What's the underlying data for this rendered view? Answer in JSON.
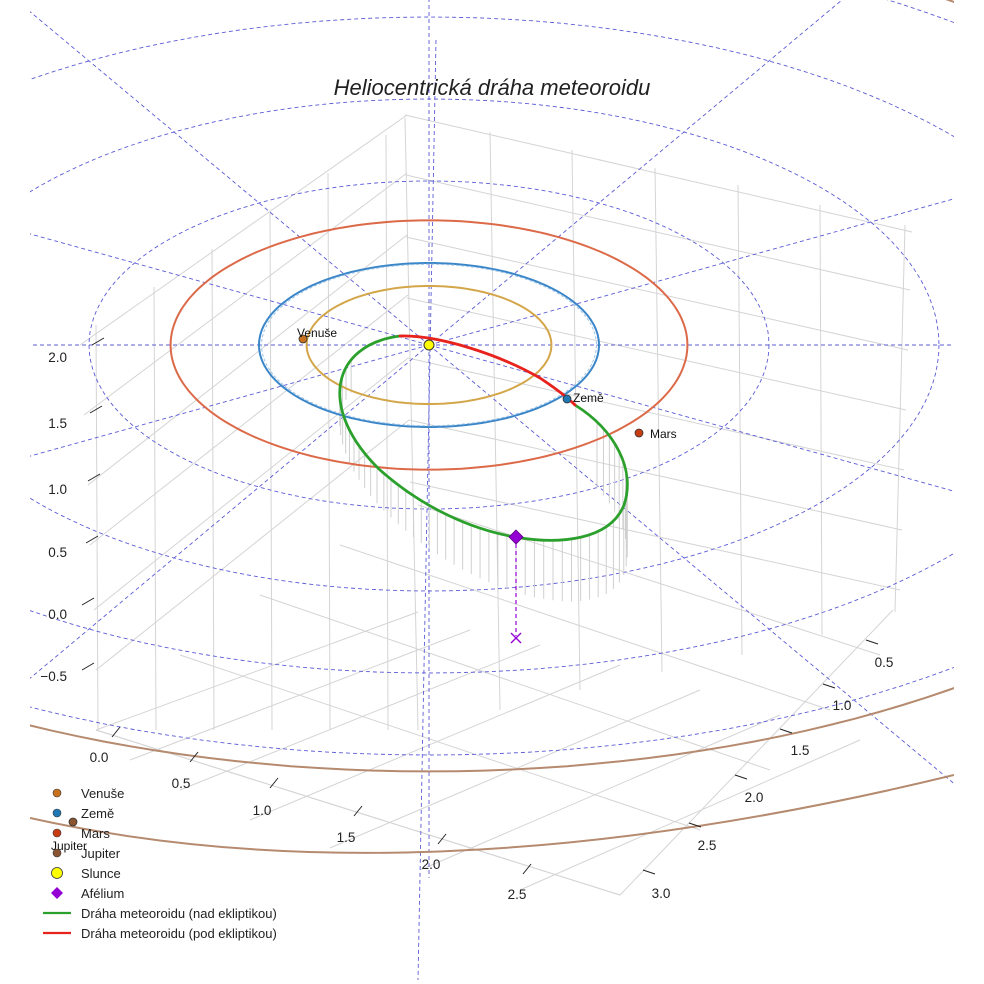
{
  "chart_data": {
    "type": "line",
    "title": "Heliocentrická dráha meteoroidu",
    "axes": {
      "x": {
        "range": [
          0,
          3.2
        ],
        "ticks": [
          "0.0",
          "0.5",
          "1.0",
          "1.5",
          "2.0",
          "2.5"
        ]
      },
      "y": {
        "range": [
          0.3,
          3.1
        ],
        "ticks": [
          "0.5",
          "1.0",
          "1.5",
          "2.0",
          "2.5",
          "3.0"
        ]
      },
      "z": {
        "range": [
          -0.8,
          2.2
        ],
        "ticks": [
          "−0.5",
          "0.0",
          "0.5",
          "1.0",
          "1.5",
          "2.0"
        ]
      },
      "grid": true
    },
    "planets": [
      {
        "name": "Venuše",
        "label": "Venuše",
        "orbit_radius_au": 0.72,
        "color": "#d4a64a",
        "marker": "#c7711e"
      },
      {
        "name": "Země",
        "label": "Země",
        "orbit_radius_au": 1.0,
        "color": "#3a86c8",
        "marker": "#1f77b4"
      },
      {
        "name": "Mars",
        "label": "Mars",
        "orbit_radius_au": 1.52,
        "color": "#dc6a48",
        "marker": "#c83c14"
      },
      {
        "name": "Jupiter",
        "label": "Jupiter",
        "orbit_radius_au": 5.2,
        "color": "#b58a6e",
        "marker": "#8a5530"
      }
    ],
    "sun": {
      "label": "Slunce",
      "color": "#ffff00"
    },
    "aphelion": {
      "label": "Afélium",
      "color": "#9400d3"
    },
    "meteoroid_orbit": {
      "above_ecliptic": {
        "label": "Dráha meteoroidu (nad ekliptikou)",
        "color": "#2ca02c"
      },
      "below_ecliptic": {
        "label": "Dráha meteoroidu (pod ekliptikou)",
        "color": "#e8221c"
      }
    },
    "ecliptic_grid_rings_au": [
      1,
      2,
      3,
      4,
      5
    ],
    "legend": [
      {
        "label": "Venuše",
        "kind": "dot",
        "color": "#c7711e"
      },
      {
        "label": "Země",
        "kind": "dot",
        "color": "#1f77b4"
      },
      {
        "label": "Mars",
        "kind": "dot",
        "color": "#c83c14"
      },
      {
        "label": "Jupiter",
        "kind": "dot",
        "color": "#8a5530"
      },
      {
        "label": "Slunce",
        "kind": "sun",
        "color": "#ffff00"
      },
      {
        "label": "Afélium",
        "kind": "diamond",
        "color": "#9400d3"
      },
      {
        "label": "Dráha meteoroidu (nad ekliptikou)",
        "kind": "line",
        "color": "#2ca02c"
      },
      {
        "label": "Dráha meteoroidu (pod ekliptikou)",
        "kind": "line",
        "color": "#e8221c"
      }
    ]
  }
}
